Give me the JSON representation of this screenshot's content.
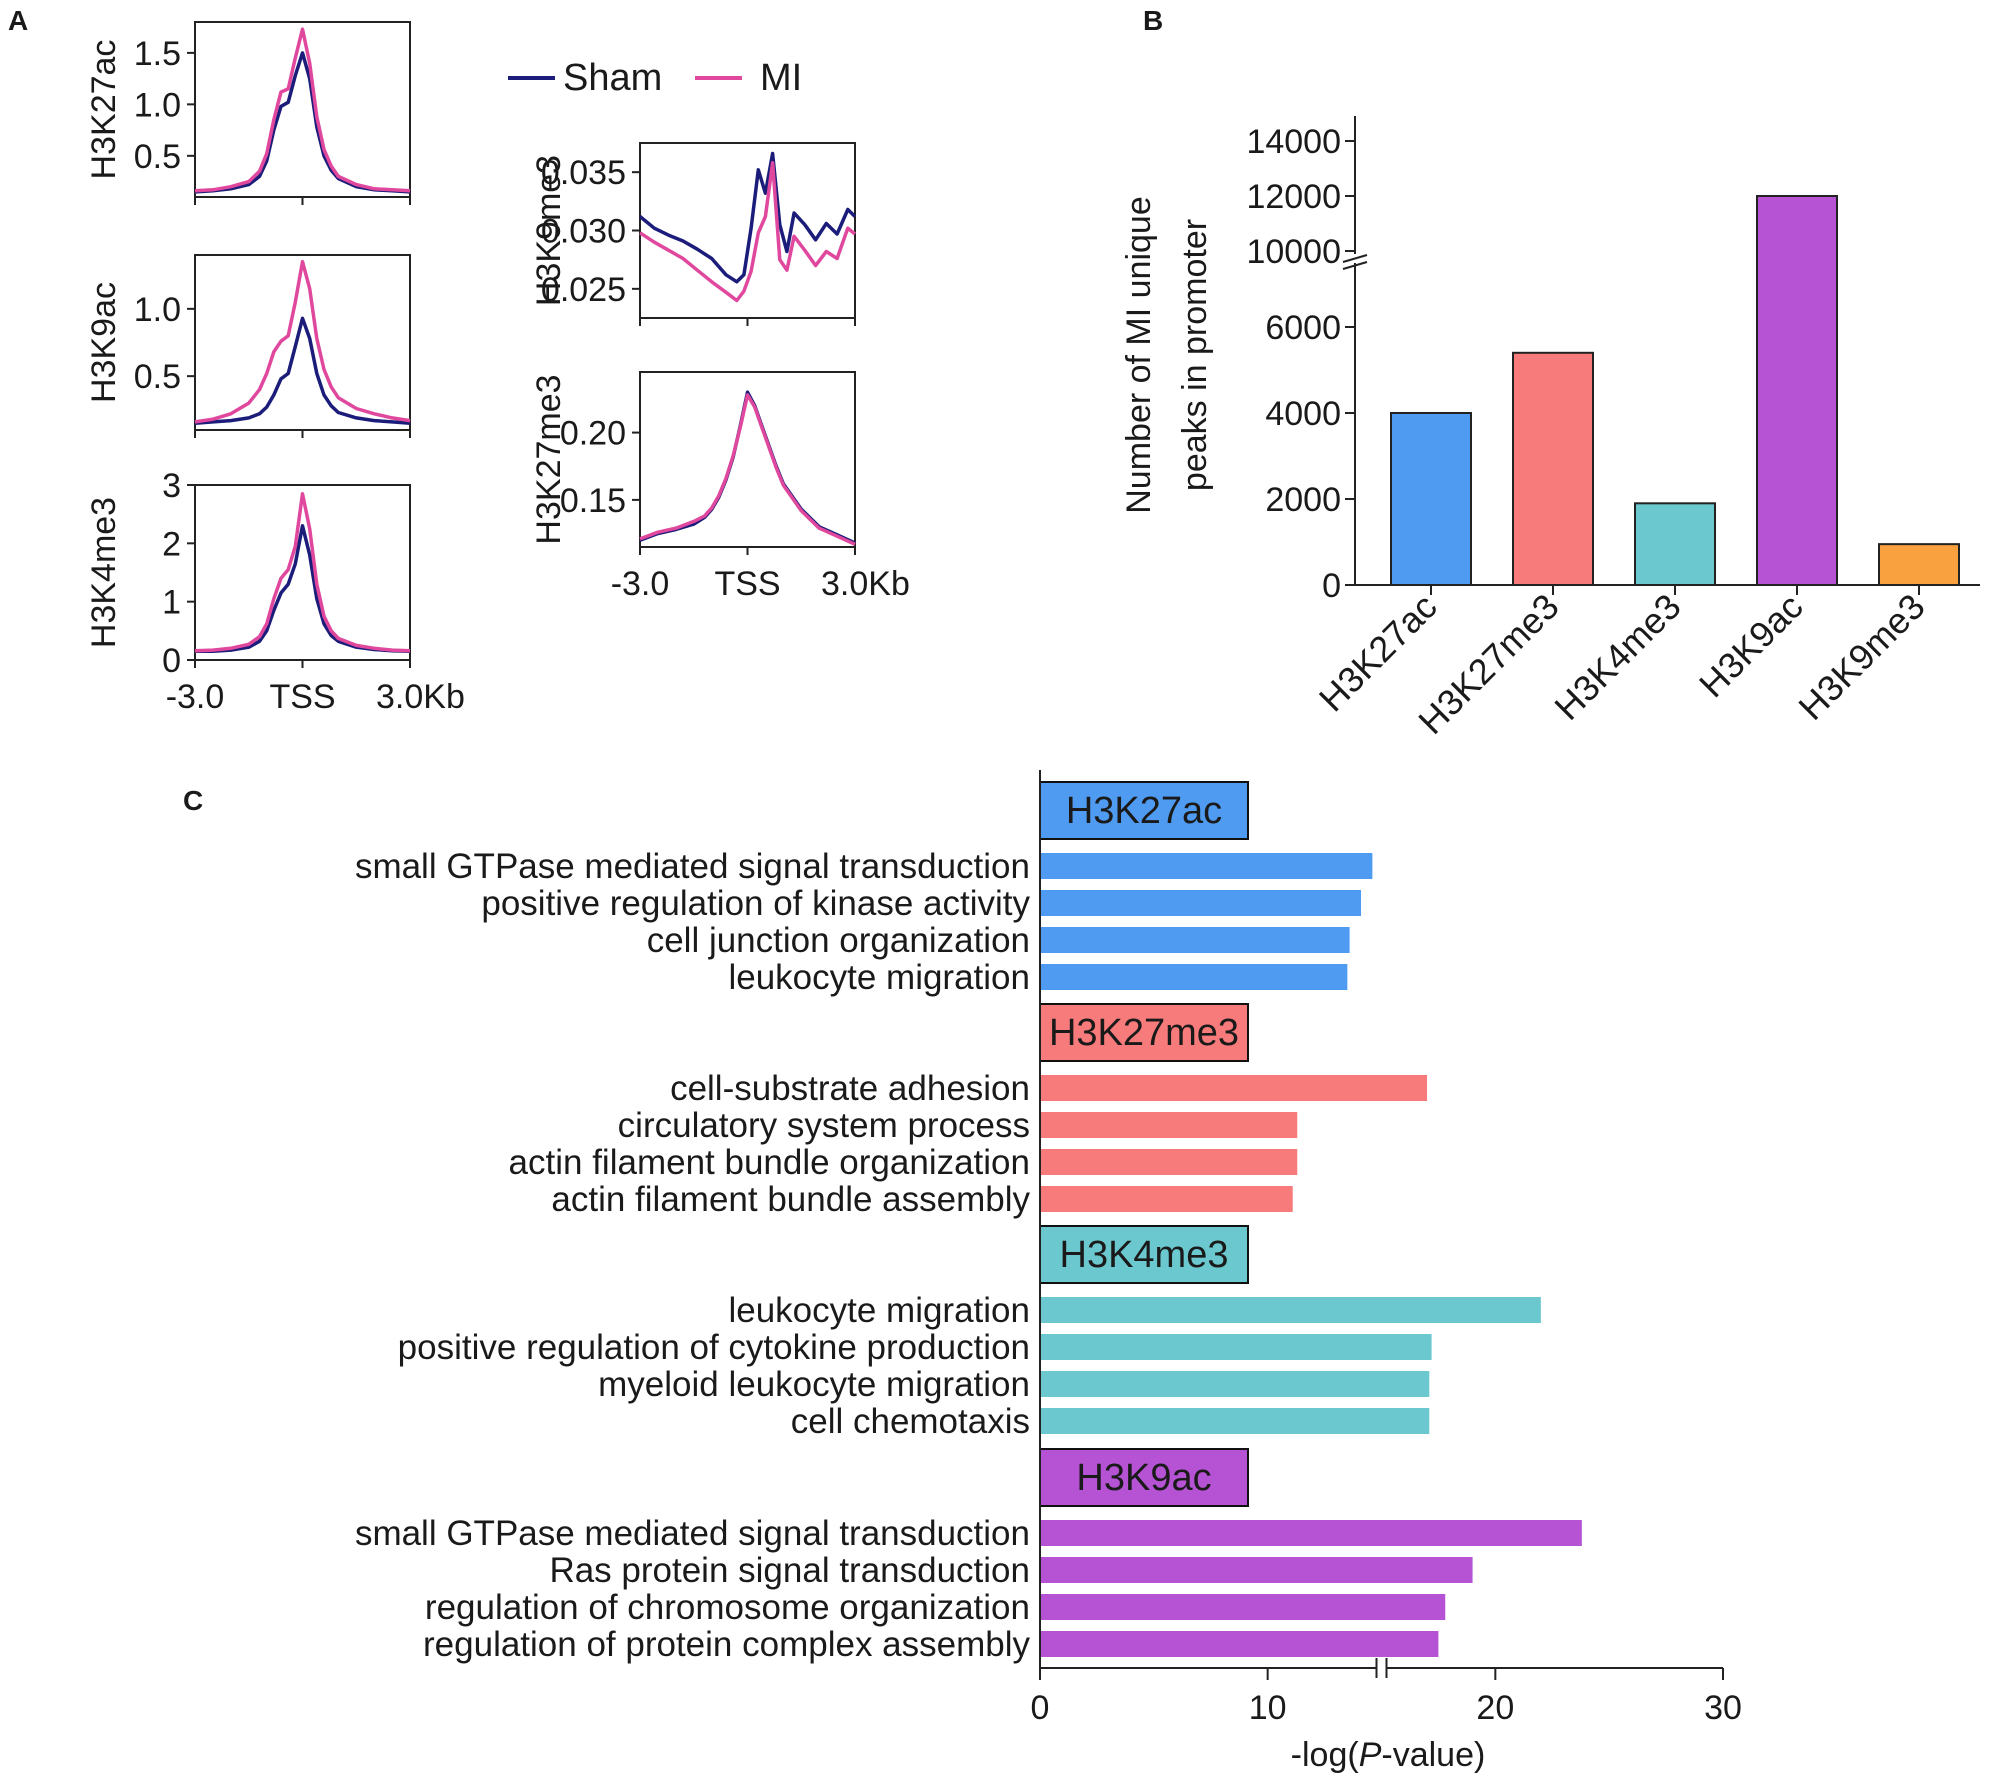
{
  "chart_data": [
    {
      "panel": "A",
      "type": "line",
      "legend": [
        {
          "name": "Sham",
          "color": "#1c1d7a"
        },
        {
          "name": "MI",
          "color": "#e0489e"
        }
      ],
      "x_ticks": [
        "-3.0",
        "TSS",
        "3.0Kb"
      ],
      "plots": [
        {
          "mark": "H3K27ac",
          "ylabel": "H3K27ac",
          "ylim": [
            0.1,
            1.8
          ],
          "yticks": [
            "0.5",
            "1.0",
            "1.5"
          ],
          "series": [
            {
              "name": "Sham",
              "x": [
                -3,
                -2.5,
                -2,
                -1.5,
                -1.2,
                -1,
                -0.8,
                -0.6,
                -0.4,
                -0.2,
                0,
                0.2,
                0.4,
                0.6,
                0.8,
                1,
                1.5,
                2,
                2.5,
                3
              ],
              "y": [
                0.15,
                0.16,
                0.18,
                0.22,
                0.3,
                0.45,
                0.75,
                0.98,
                1.02,
                1.28,
                1.5,
                1.25,
                0.78,
                0.5,
                0.36,
                0.28,
                0.2,
                0.17,
                0.16,
                0.15
              ]
            },
            {
              "name": "MI",
              "x": [
                -3,
                -2.5,
                -2,
                -1.5,
                -1.2,
                -1,
                -0.8,
                -0.6,
                -0.4,
                -0.2,
                0,
                0.2,
                0.4,
                0.6,
                0.8,
                1,
                1.5,
                2,
                2.5,
                3
              ],
              "y": [
                0.16,
                0.17,
                0.2,
                0.25,
                0.35,
                0.52,
                0.85,
                1.12,
                1.15,
                1.45,
                1.73,
                1.4,
                0.88,
                0.56,
                0.4,
                0.3,
                0.22,
                0.18,
                0.17,
                0.16
              ]
            }
          ]
        },
        {
          "mark": "H3K9ac",
          "ylabel": "H3K9ac",
          "ylim": [
            0.1,
            1.4
          ],
          "yticks": [
            "0.5",
            "1.0"
          ],
          "series": [
            {
              "name": "Sham",
              "x": [
                -3,
                -2.5,
                -2,
                -1.5,
                -1.2,
                -1,
                -0.8,
                -0.6,
                -0.4,
                -0.2,
                0,
                0.2,
                0.4,
                0.6,
                0.8,
                1,
                1.5,
                2,
                2.5,
                3
              ],
              "y": [
                0.15,
                0.16,
                0.17,
                0.19,
                0.22,
                0.27,
                0.36,
                0.48,
                0.52,
                0.72,
                0.93,
                0.78,
                0.52,
                0.36,
                0.28,
                0.23,
                0.19,
                0.17,
                0.16,
                0.15
              ]
            },
            {
              "name": "MI",
              "x": [
                -3,
                -2.5,
                -2,
                -1.5,
                -1.2,
                -1,
                -0.8,
                -0.6,
                -0.4,
                -0.2,
                0,
                0.2,
                0.4,
                0.6,
                0.8,
                1,
                1.5,
                2,
                2.5,
                3
              ],
              "y": [
                0.16,
                0.18,
                0.22,
                0.3,
                0.4,
                0.52,
                0.68,
                0.76,
                0.8,
                1.05,
                1.35,
                1.15,
                0.78,
                0.55,
                0.42,
                0.34,
                0.26,
                0.22,
                0.19,
                0.17
              ]
            }
          ]
        },
        {
          "mark": "H3K4me3",
          "ylabel": "H3K4me3",
          "ylim": [
            0,
            3
          ],
          "yticks": [
            "0",
            "1",
            "2",
            "3"
          ],
          "series": [
            {
              "name": "Sham",
              "x": [
                -3,
                -2.5,
                -2,
                -1.5,
                -1.2,
                -1,
                -0.8,
                -0.6,
                -0.4,
                -0.2,
                0,
                0.2,
                0.4,
                0.6,
                0.8,
                1,
                1.5,
                2,
                2.5,
                3
              ],
              "y": [
                0.15,
                0.15,
                0.17,
                0.22,
                0.32,
                0.5,
                0.85,
                1.15,
                1.3,
                1.65,
                2.3,
                1.8,
                1.05,
                0.62,
                0.42,
                0.32,
                0.22,
                0.18,
                0.16,
                0.15
              ]
            },
            {
              "name": "MI",
              "x": [
                -3,
                -2.5,
                -2,
                -1.5,
                -1.2,
                -1,
                -0.8,
                -0.6,
                -0.4,
                -0.2,
                0,
                0.2,
                0.4,
                0.6,
                0.8,
                1,
                1.5,
                2,
                2.5,
                3
              ],
              "y": [
                0.16,
                0.17,
                0.2,
                0.27,
                0.4,
                0.62,
                1.05,
                1.4,
                1.55,
                1.95,
                2.85,
                2.25,
                1.3,
                0.75,
                0.5,
                0.37,
                0.25,
                0.2,
                0.17,
                0.16
              ]
            }
          ]
        },
        {
          "mark": "H3K9me3",
          "ylabel": "H3K9me3",
          "ylim": [
            0.0225,
            0.0375
          ],
          "yticks": [
            "0.025",
            "0.030",
            "0.035"
          ],
          "series": [
            {
              "name": "Sham",
              "x": [
                -3,
                -2.6,
                -2.2,
                -1.8,
                -1.4,
                -1,
                -0.6,
                -0.3,
                -0.1,
                0.1,
                0.3,
                0.5,
                0.7,
                0.9,
                1.1,
                1.3,
                1.6,
                1.9,
                2.2,
                2.5,
                2.8,
                3
              ],
              "y": [
                0.0312,
                0.0302,
                0.0296,
                0.0291,
                0.0284,
                0.0276,
                0.0262,
                0.0256,
                0.0262,
                0.0302,
                0.0352,
                0.0332,
                0.0366,
                0.0305,
                0.0282,
                0.0315,
                0.0305,
                0.0292,
                0.0306,
                0.0297,
                0.0318,
                0.0312
              ]
            },
            {
              "name": "MI",
              "x": [
                -3,
                -2.6,
                -2.2,
                -1.8,
                -1.4,
                -1,
                -0.6,
                -0.3,
                -0.1,
                0.1,
                0.3,
                0.5,
                0.7,
                0.9,
                1.1,
                1.3,
                1.6,
                1.9,
                2.2,
                2.5,
                2.8,
                3
              ],
              "y": [
                0.0298,
                0.029,
                0.0283,
                0.0276,
                0.0266,
                0.0256,
                0.0247,
                0.024,
                0.0248,
                0.0265,
                0.0298,
                0.0312,
                0.0358,
                0.0275,
                0.0266,
                0.0295,
                0.0283,
                0.027,
                0.0282,
                0.0276,
                0.0302,
                0.0297
              ]
            }
          ]
        },
        {
          "mark": "H3K27me3",
          "ylabel": "H3K27me3",
          "ylim": [
            0.115,
            0.245
          ],
          "yticks": [
            "0.15",
            "0.20"
          ],
          "series": [
            {
              "name": "Sham",
              "x": [
                -3,
                -2.5,
                -2,
                -1.5,
                -1.2,
                -1,
                -0.8,
                -0.6,
                -0.4,
                -0.2,
                0,
                0.2,
                0.4,
                0.6,
                0.8,
                1,
                1.5,
                2,
                2.5,
                3
              ],
              "y": [
                0.12,
                0.125,
                0.128,
                0.132,
                0.137,
                0.143,
                0.152,
                0.165,
                0.182,
                0.205,
                0.23,
                0.22,
                0.205,
                0.19,
                0.175,
                0.162,
                0.143,
                0.13,
                0.124,
                0.118
              ]
            },
            {
              "name": "MI",
              "x": [
                -3,
                -2.5,
                -2,
                -1.5,
                -1.2,
                -1,
                -0.8,
                -0.6,
                -0.4,
                -0.2,
                0,
                0.2,
                0.4,
                0.6,
                0.8,
                1,
                1.5,
                2,
                2.5,
                3
              ],
              "y": [
                0.121,
                0.126,
                0.129,
                0.134,
                0.138,
                0.144,
                0.153,
                0.166,
                0.183,
                0.204,
                0.228,
                0.219,
                0.204,
                0.189,
                0.174,
                0.161,
                0.142,
                0.129,
                0.123,
                0.117
              ]
            }
          ]
        }
      ]
    },
    {
      "panel": "B",
      "type": "bar",
      "ylabel": [
        "Number of MI unique",
        "peaks in promoter"
      ],
      "categories": [
        "H3K27ac",
        "H3K27me3",
        "H3K4me3",
        "H3K9ac",
        "H3K9me3"
      ],
      "values": [
        4000,
        5400,
        1900,
        12000,
        950
      ],
      "colors": [
        "#4f9bf2",
        "#f87b7b",
        "#6cc8cf",
        "#b653d5",
        "#f9a13f"
      ],
      "yticks": [
        "0",
        "2000",
        "4000",
        "6000",
        "10000",
        "12000",
        "14000"
      ],
      "axis_break": [
        7000,
        10000
      ]
    },
    {
      "panel": "C",
      "type": "bar",
      "orientation": "horizontal",
      "xlabel": "-log(",
      "xlabel_italic": "P",
      "xlabel_tail": "-value)",
      "xticks": [
        "0",
        "10",
        "20",
        "30"
      ],
      "xlim": [
        0,
        30
      ],
      "axis_break": 15,
      "groups": [
        {
          "mark": "H3K27ac",
          "color": "#4f9bf2",
          "terms": [
            "small GTPase mediated signal transduction",
            "positive regulation of kinase activity",
            "cell junction organization",
            "leukocyte migration"
          ],
          "values": [
            14.6,
            14.1,
            13.6,
            13.5
          ]
        },
        {
          "mark": "H3K27me3",
          "color": "#f87b7b",
          "terms": [
            "cell-substrate adhesion",
            "circulatory system process",
            "actin filament bundle organization",
            "actin filament bundle assembly"
          ],
          "values": [
            17.0,
            11.3,
            11.3,
            11.1
          ]
        },
        {
          "mark": "H3K4me3",
          "color": "#6cc8cf",
          "terms": [
            "leukocyte migration",
            "positive regulation of cytokine production",
            "myeloid leukocyte migration",
            "cell chemotaxis"
          ],
          "values": [
            22.0,
            17.2,
            17.1,
            17.1
          ]
        },
        {
          "mark": "H3K9ac",
          "color": "#b653d5",
          "terms": [
            "small GTPase mediated signal transduction",
            "Ras protein signal transduction",
            "regulation of chromosome organization",
            "regulation of protein complex assembly"
          ],
          "values": [
            23.8,
            19.0,
            17.8,
            17.5
          ]
        }
      ]
    }
  ]
}
